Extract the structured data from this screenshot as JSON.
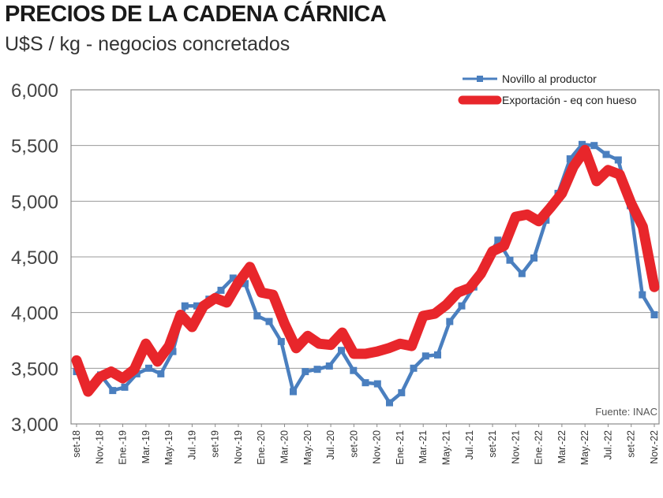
{
  "chart_data": {
    "type": "line",
    "title": "PRECIOS DE LA CADENA CÁRNICA",
    "subtitle": "U$S / kg - negocios concretados",
    "source": "Fuente: INAC",
    "ylim": [
      3000,
      6000
    ],
    "yticks": [
      "3,000",
      "3,500",
      "4,000",
      "4,500",
      "5,000",
      "5,500",
      "6,000"
    ],
    "ytick_values": [
      3000,
      3500,
      4000,
      4500,
      5000,
      5500,
      6000
    ],
    "grid": true,
    "legend_position": "top-right",
    "x_labels": [
      "set-18",
      "Nov.-18",
      "Ene.-19",
      "Mar.-19",
      "May.-19",
      "Jul.-19",
      "set-19",
      "Nov.-19",
      "Ene.-20",
      "Mar.-20",
      "May.-20",
      "Jul.-20",
      "set-20",
      "Nov.-20",
      "Ene.-21",
      "Mar.-21",
      "May.-21",
      "Jul.-21",
      "set-21",
      "Nov.-21",
      "Ene.-22",
      "Mar.-22",
      "May.-22",
      "Jul.-22",
      "set-22",
      "Nov.-22"
    ],
    "series": [
      {
        "name": "Novillo al productor",
        "color": "#4a7fbf",
        "style": "thin-line-square-markers",
        "values": [
          3470,
          3320,
          3440,
          3300,
          3330,
          3450,
          3500,
          3450,
          3650,
          4060,
          4060,
          4120,
          4200,
          4310,
          4260,
          3970,
          3920,
          3740,
          3290,
          3470,
          3490,
          3520,
          3660,
          3480,
          3370,
          3360,
          3190,
          3280,
          3500,
          3610,
          3620,
          3920,
          4060,
          4230,
          4450,
          4650,
          4470,
          4350,
          4490,
          4830,
          5070,
          5380,
          5510,
          5500,
          5420,
          5370,
          4960,
          4160,
          3980
        ]
      },
      {
        "name": "Exportación - eq con hueso",
        "color": "#e8262b",
        "style": "thick-line",
        "values": [
          3570,
          3290,
          3420,
          3470,
          3410,
          3490,
          3720,
          3560,
          3700,
          3980,
          3870,
          4060,
          4130,
          4090,
          4270,
          4410,
          4180,
          4160,
          3900,
          3680,
          3790,
          3720,
          3710,
          3820,
          3630,
          3630,
          3650,
          3680,
          3720,
          3700,
          3970,
          3990,
          4070,
          4180,
          4220,
          4350,
          4550,
          4600,
          4860,
          4880,
          4820,
          4940,
          5070,
          5310,
          5460,
          5180,
          5280,
          5240,
          4980,
          4770,
          4230
        ]
      }
    ]
  }
}
